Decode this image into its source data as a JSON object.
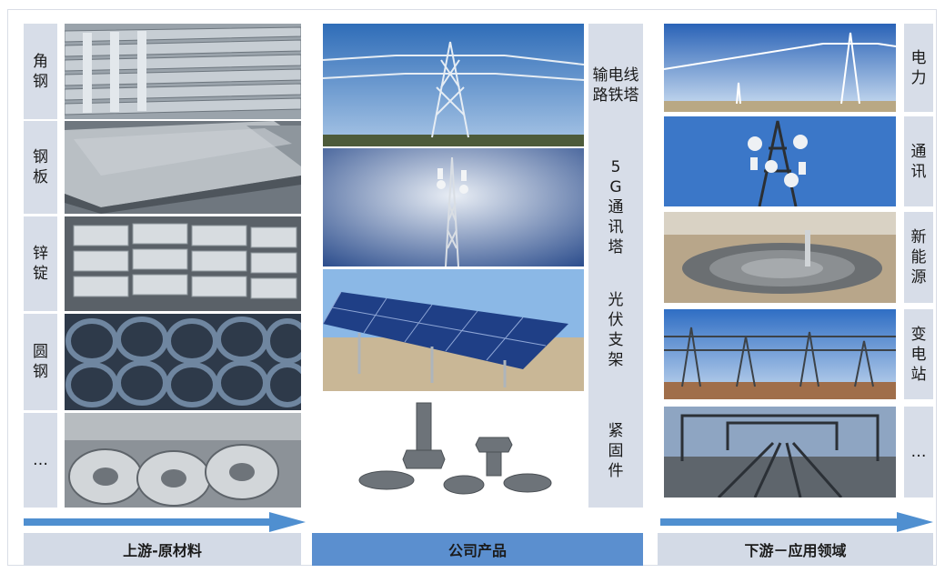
{
  "upstream": {
    "items": [
      {
        "label": "角钢",
        "icon": "angle-steel-photo"
      },
      {
        "label": "钢板",
        "icon": "steel-plate-photo"
      },
      {
        "label": "锌锭",
        "icon": "zinc-ingot-photo"
      },
      {
        "label": "圆钢",
        "icon": "round-steel-photo"
      },
      {
        "label": "…",
        "icon": "steel-coil-photo"
      }
    ],
    "footer": "上游-原材料"
  },
  "products": {
    "items": [
      {
        "label": "输电线路铁塔",
        "icon": "transmission-tower-photo"
      },
      {
        "label": "5G通讯塔",
        "icon": "telecom-tower-photo"
      },
      {
        "label": "光伏支架",
        "icon": "solar-bracket-photo"
      },
      {
        "label": "紧固件",
        "icon": "fastener-photo"
      }
    ],
    "footer": "公司产品"
  },
  "downstream": {
    "items": [
      {
        "label": "电力",
        "icon": "power-tower-photo"
      },
      {
        "label": "通讯",
        "icon": "antenna-tower-photo"
      },
      {
        "label": "新能源",
        "icon": "solar-plant-photo"
      },
      {
        "label": "变电站",
        "icon": "substation-photo"
      },
      {
        "label": "…",
        "icon": "railway-photo"
      }
    ],
    "footer": "下游－应用领域"
  },
  "colors": {
    "strip": "#d7dde8",
    "footer_side": "#d3dae6",
    "footer_center": "#5b8fcf",
    "arrow": "#4f8fd0"
  }
}
